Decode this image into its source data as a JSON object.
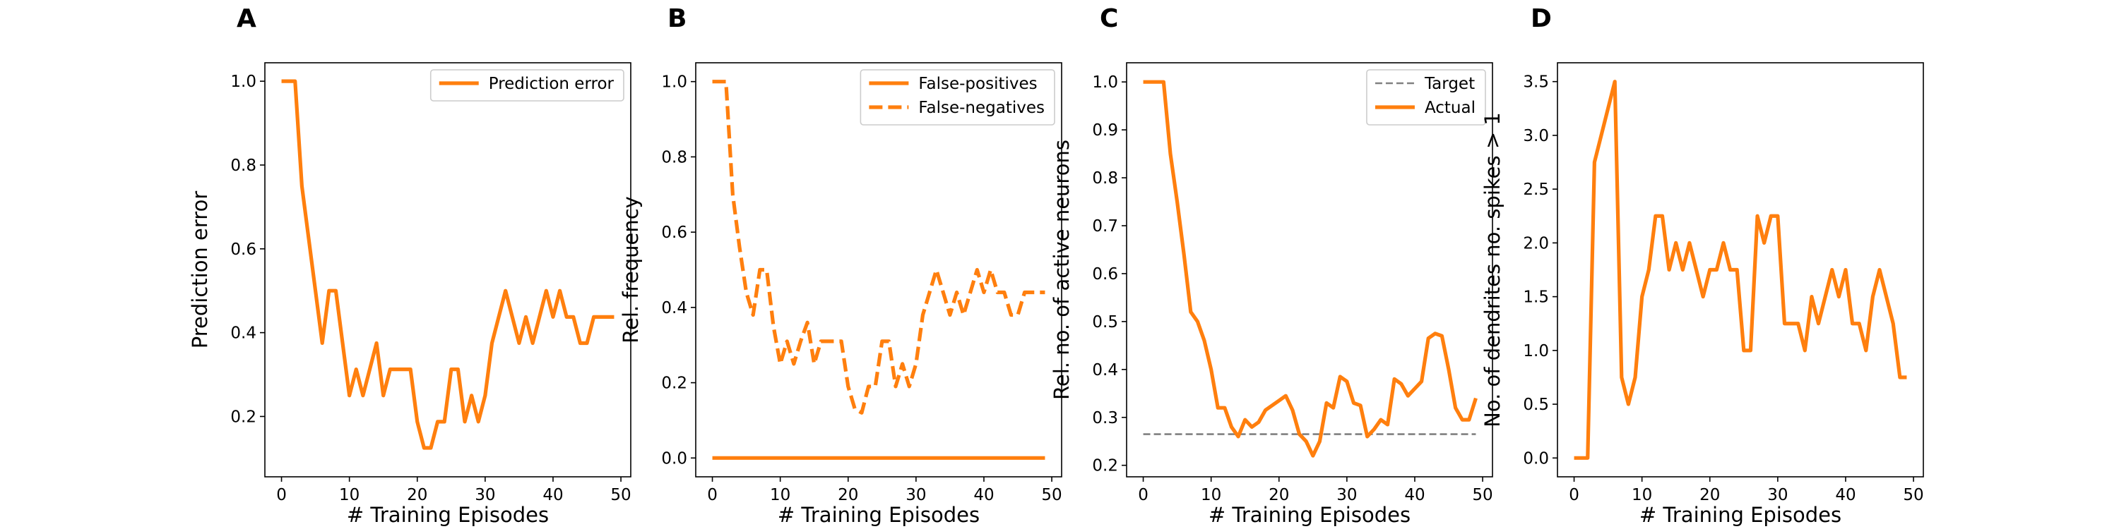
{
  "colors": {
    "series": "#ff7f0e",
    "target": "#808080",
    "axis": "#000000",
    "legend_border": "#cccccc"
  },
  "chart_data": [
    {
      "panel": "A",
      "type": "line",
      "xlabel": "# Training Episodes",
      "ylabel": "Prediction error",
      "xlim": [
        -2.45,
        51.45
      ],
      "ylim": [
        0.056,
        1.044
      ],
      "xticks": [
        0,
        10,
        20,
        30,
        40,
        50
      ],
      "yticks": [
        0.2,
        0.4,
        0.6,
        0.8,
        1.0
      ],
      "ytick_labels": [
        "0.2",
        "0.4",
        "0.6",
        "0.8",
        "1.0"
      ],
      "legend": "top-right",
      "series": [
        {
          "name": "Prediction error",
          "style": "solid",
          "x": [
            0,
            1,
            2,
            3,
            4,
            5,
            6,
            7,
            8,
            9,
            10,
            11,
            12,
            13,
            14,
            15,
            16,
            17,
            18,
            19,
            20,
            21,
            22,
            23,
            24,
            25,
            26,
            27,
            28,
            29,
            30,
            31,
            32,
            33,
            34,
            35,
            36,
            37,
            38,
            39,
            40,
            41,
            42,
            43,
            44,
            45,
            46,
            47,
            48,
            49
          ],
          "y": [
            1.0,
            1.0,
            1.0,
            0.75,
            0.625,
            0.5,
            0.375,
            0.5,
            0.5,
            0.375,
            0.25,
            0.3125,
            0.25,
            0.3125,
            0.375,
            0.25,
            0.3125,
            0.3125,
            0.3125,
            0.3125,
            0.1875,
            0.125,
            0.125,
            0.1875,
            0.1875,
            0.3125,
            0.3125,
            0.1875,
            0.25,
            0.1875,
            0.25,
            0.375,
            0.4375,
            0.5,
            0.4375,
            0.375,
            0.4375,
            0.375,
            0.4375,
            0.5,
            0.4375,
            0.5,
            0.4375,
            0.4375,
            0.375,
            0.375,
            0.4375,
            0.4375,
            0.4375,
            0.4375
          ]
        }
      ]
    },
    {
      "panel": "B",
      "type": "line",
      "xlabel": "# Training Episodes",
      "ylabel": "Rel. frequency",
      "xlim": [
        -2.45,
        51.45
      ],
      "ylim": [
        -0.05,
        1.05
      ],
      "xticks": [
        0,
        10,
        20,
        30,
        40,
        50
      ],
      "yticks": [
        0.0,
        0.2,
        0.4,
        0.6,
        0.8,
        1.0
      ],
      "ytick_labels": [
        "0.0",
        "0.2",
        "0.4",
        "0.6",
        "0.8",
        "1.0"
      ],
      "legend": "top-right",
      "series": [
        {
          "name": "False-positives",
          "style": "solid",
          "x": [
            0,
            1,
            2,
            3,
            4,
            5,
            6,
            7,
            8,
            9,
            10,
            11,
            12,
            13,
            14,
            15,
            16,
            17,
            18,
            19,
            20,
            21,
            22,
            23,
            24,
            25,
            26,
            27,
            28,
            29,
            30,
            31,
            32,
            33,
            34,
            35,
            36,
            37,
            38,
            39,
            40,
            41,
            42,
            43,
            44,
            45,
            46,
            47,
            48,
            49
          ],
          "y": [
            0,
            0,
            0,
            0,
            0,
            0,
            0,
            0,
            0,
            0,
            0,
            0,
            0,
            0,
            0,
            0,
            0,
            0,
            0,
            0,
            0,
            0,
            0,
            0,
            0,
            0,
            0,
            0,
            0,
            0,
            0,
            0,
            0,
            0,
            0,
            0,
            0,
            0,
            0,
            0,
            0,
            0,
            0,
            0,
            0,
            0,
            0,
            0,
            0,
            0
          ]
        },
        {
          "name": "False-negatives",
          "style": "dashed",
          "x": [
            0,
            1,
            2,
            3,
            4,
            5,
            6,
            7,
            8,
            9,
            10,
            11,
            12,
            13,
            14,
            15,
            16,
            17,
            18,
            19,
            20,
            21,
            22,
            23,
            24,
            25,
            26,
            27,
            28,
            29,
            30,
            31,
            32,
            33,
            34,
            35,
            36,
            37,
            38,
            39,
            40,
            41,
            42,
            43,
            44,
            45,
            46,
            47,
            48,
            49
          ],
          "y": [
            1.0,
            1.0,
            1.0,
            0.7,
            0.56,
            0.44,
            0.38,
            0.5,
            0.5,
            0.35,
            0.25,
            0.31,
            0.25,
            0.31,
            0.36,
            0.25,
            0.31,
            0.31,
            0.31,
            0.31,
            0.19,
            0.13,
            0.12,
            0.19,
            0.19,
            0.31,
            0.31,
            0.19,
            0.25,
            0.19,
            0.25,
            0.38,
            0.44,
            0.5,
            0.44,
            0.38,
            0.44,
            0.38,
            0.44,
            0.5,
            0.44,
            0.5,
            0.44,
            0.44,
            0.38,
            0.38,
            0.44,
            0.44,
            0.44,
            0.44
          ]
        }
      ]
    },
    {
      "panel": "C",
      "type": "line",
      "xlabel": "# Training Episodes",
      "ylabel": "Rel. no. of active neurons",
      "xlim": [
        -2.45,
        51.45
      ],
      "ylim": [
        0.176,
        1.04
      ],
      "xticks": [
        0,
        10,
        20,
        30,
        40,
        50
      ],
      "yticks": [
        0.2,
        0.3,
        0.4,
        0.5,
        0.6,
        0.7,
        0.8,
        0.9,
        1.0
      ],
      "ytick_labels": [
        "0.2",
        "0.3",
        "0.4",
        "0.5",
        "0.6",
        "0.7",
        "0.8",
        "0.9",
        "1.0"
      ],
      "legend": "top-right",
      "series": [
        {
          "name": "Target",
          "style": "dashed",
          "color": "#808080",
          "x": [
            0,
            49
          ],
          "y": [
            0.265,
            0.265
          ]
        },
        {
          "name": "Actual",
          "style": "solid",
          "x": [
            0,
            1,
            2,
            3,
            4,
            5,
            6,
            7,
            8,
            9,
            10,
            11,
            12,
            13,
            14,
            15,
            16,
            17,
            18,
            19,
            20,
            21,
            22,
            23,
            24,
            25,
            26,
            27,
            28,
            29,
            30,
            31,
            32,
            33,
            34,
            35,
            36,
            37,
            38,
            39,
            40,
            41,
            42,
            43,
            44,
            45,
            46,
            47,
            48,
            49
          ],
          "y": [
            1.0,
            1.0,
            1.0,
            1.0,
            0.85,
            0.75,
            0.64,
            0.52,
            0.5,
            0.46,
            0.4,
            0.32,
            0.32,
            0.28,
            0.26,
            0.295,
            0.28,
            0.29,
            0.315,
            0.325,
            0.335,
            0.345,
            0.315,
            0.265,
            0.25,
            0.22,
            0.25,
            0.33,
            0.32,
            0.385,
            0.375,
            0.33,
            0.325,
            0.26,
            0.275,
            0.295,
            0.285,
            0.38,
            0.37,
            0.345,
            0.36,
            0.375,
            0.465,
            0.475,
            0.47,
            0.4,
            0.32,
            0.295,
            0.295,
            0.34
          ]
        }
      ]
    },
    {
      "panel": "D",
      "type": "line",
      "xlabel": "# Training Episodes",
      "ylabel": "No. of dendrites no. spikes > 1",
      "xlim": [
        -2.45,
        51.45
      ],
      "ylim": [
        -0.175,
        3.675
      ],
      "xticks": [
        0,
        10,
        20,
        30,
        40,
        50
      ],
      "yticks": [
        0.0,
        0.5,
        1.0,
        1.5,
        2.0,
        2.5,
        3.0,
        3.5
      ],
      "ytick_labels": [
        "0.0",
        "0.5",
        "1.0",
        "1.5",
        "2.0",
        "2.5",
        "3.0",
        "3.5"
      ],
      "legend": "none",
      "series": [
        {
          "name": "",
          "style": "solid",
          "x": [
            0,
            1,
            2,
            3,
            4,
            5,
            6,
            7,
            8,
            9,
            10,
            11,
            12,
            13,
            14,
            15,
            16,
            17,
            18,
            19,
            20,
            21,
            22,
            23,
            24,
            25,
            26,
            27,
            28,
            29,
            30,
            31,
            32,
            33,
            34,
            35,
            36,
            37,
            38,
            39,
            40,
            41,
            42,
            43,
            44,
            45,
            46,
            47,
            48,
            49
          ],
          "y": [
            0,
            0,
            0,
            2.75,
            3.0,
            3.25,
            3.5,
            0.75,
            0.5,
            0.75,
            1.5,
            1.75,
            2.25,
            2.25,
            1.75,
            2.0,
            1.75,
            2.0,
            1.75,
            1.5,
            1.75,
            1.75,
            2.0,
            1.75,
            1.75,
            1.0,
            1.0,
            2.25,
            2.0,
            2.25,
            2.25,
            1.25,
            1.25,
            1.25,
            1.0,
            1.5,
            1.25,
            1.5,
            1.75,
            1.5,
            1.75,
            1.25,
            1.25,
            1.0,
            1.5,
            1.75,
            1.5,
            1.25,
            0.75,
            0.75
          ]
        }
      ]
    }
  ]
}
